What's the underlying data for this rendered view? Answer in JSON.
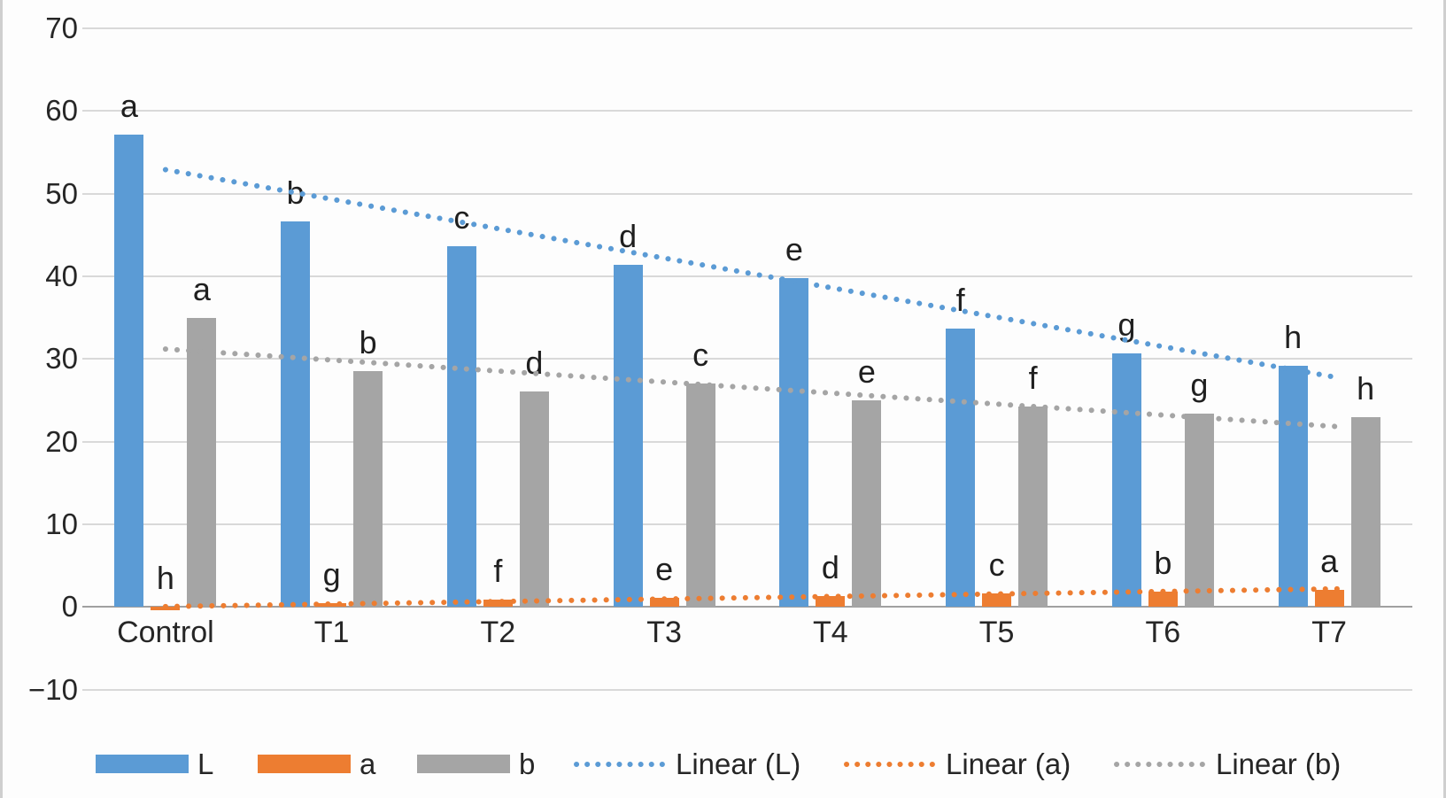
{
  "figure": {
    "background": "#fdfdfd",
    "border_color": "#cfcfcf",
    "gridline_color": "#d9d9d9",
    "axis_line_color": "#a0a0a0",
    "text_color": "#262626"
  },
  "chart_data": {
    "type": "bar",
    "title": "",
    "xlabel": "",
    "ylabel": "",
    "categories": [
      "Control",
      "T1",
      "T2",
      "T3",
      "T4",
      "T5",
      "T6",
      "T7"
    ],
    "series": [
      {
        "name": "L",
        "color": "#5B9BD5",
        "values": [
          57.1,
          46.6,
          43.6,
          41.4,
          39.8,
          33.7,
          30.7,
          29.2
        ],
        "point_letters": [
          "a",
          "b",
          "c",
          "d",
          "e",
          "f",
          "g",
          "h"
        ]
      },
      {
        "name": "a",
        "color": "#ED7D31",
        "values": [
          -0.4,
          0.5,
          0.9,
          1.1,
          1.3,
          1.6,
          1.9,
          2.1
        ],
        "point_letters": [
          "h",
          "g",
          "f",
          "e",
          "d",
          "c",
          "b",
          "a"
        ]
      },
      {
        "name": "b",
        "color": "#A5A5A5",
        "values": [
          35.0,
          28.5,
          26.1,
          27.0,
          25.0,
          24.3,
          23.4,
          23.0
        ],
        "point_letters": [
          "a",
          "b",
          "d",
          "c",
          "e",
          "f",
          "g",
          "h"
        ]
      }
    ],
    "trendlines": [
      {
        "name": "Linear (L)",
        "color": "#5B9BD5",
        "start_value": 52.9,
        "end_value": 27.7
      },
      {
        "name": "Linear (a)",
        "color": "#ED7D31",
        "start_value": 0.05,
        "end_value": 2.2
      },
      {
        "name": "Linear (b)",
        "color": "#A5A5A5",
        "start_value": 31.2,
        "end_value": 21.8
      }
    ],
    "y_axis": {
      "min": -10,
      "max": 70,
      "step": 10,
      "tick_labels": [
        "70",
        "60",
        "50",
        "40",
        "30",
        "20",
        "10",
        "0",
        "−10"
      ]
    },
    "grid": "horizontal",
    "legend_position": "bottom",
    "legend": [
      {
        "label": "L",
        "swatch": "bar",
        "color": "#5B9BD5"
      },
      {
        "label": "a",
        "swatch": "bar",
        "color": "#ED7D31"
      },
      {
        "label": "b",
        "swatch": "bar",
        "color": "#A5A5A5"
      },
      {
        "label": "Linear (L)",
        "swatch": "dotted-line",
        "color": "#5B9BD5"
      },
      {
        "label": "Linear (a)",
        "swatch": "dotted-line",
        "color": "#ED7D31"
      },
      {
        "label": "Linear (b)",
        "swatch": "dotted-line",
        "color": "#A5A5A5"
      }
    ]
  }
}
